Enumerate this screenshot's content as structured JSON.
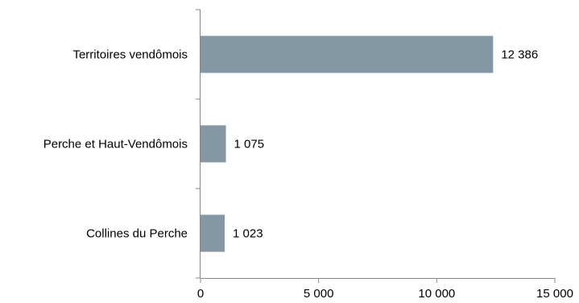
{
  "chart_data": {
    "type": "bar",
    "orientation": "horizontal",
    "categories": [
      "Territoires vendômois",
      "Perche et Haut-Vendômois",
      "Collines du Perche"
    ],
    "values": [
      12386,
      1075,
      1023
    ],
    "value_labels": [
      "12 386",
      "1 075",
      "1 023"
    ],
    "xlim": [
      0,
      15000
    ],
    "x_ticks": [
      0,
      5000,
      10000,
      15000
    ],
    "x_tick_labels": [
      "0",
      "5 000",
      "10 000",
      "15 000"
    ],
    "bar_color": "#8497a5",
    "title": "",
    "xlabel": "",
    "ylabel": "",
    "grid": false,
    "legend": "none"
  }
}
